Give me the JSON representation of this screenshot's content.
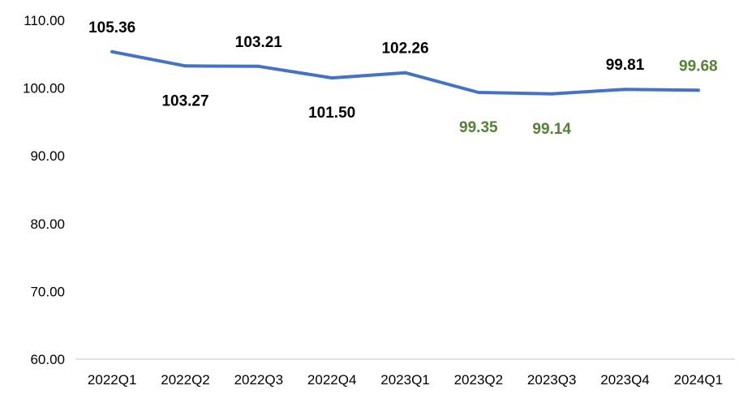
{
  "chart_data": {
    "type": "line",
    "title": "",
    "xlabel": "",
    "ylabel": "",
    "categories": [
      "2022Q1",
      "2022Q2",
      "2022Q3",
      "2022Q4",
      "2023Q1",
      "2023Q2",
      "2023Q3",
      "2023Q4",
      "2024Q1"
    ],
    "series": [
      {
        "values": [
          105.36,
          103.27,
          103.21,
          101.5,
          102.26,
          99.35,
          99.14,
          99.81,
          99.68
        ],
        "value_labels": [
          "105.36",
          "103.27",
          "103.21",
          "101.50",
          "102.26",
          "99.35",
          "99.14",
          "99.81",
          "99.68"
        ],
        "label_positions": [
          "above",
          "below",
          "above",
          "below",
          "above",
          "below",
          "below",
          "above",
          "above"
        ],
        "label_colors": [
          "#000000",
          "#000000",
          "#000000",
          "#000000",
          "#000000",
          "#548235",
          "#548235",
          "#000000",
          "#548235"
        ],
        "color": "#4472C4"
      }
    ],
    "ylim": [
      60,
      110
    ],
    "yticks": [
      60,
      70,
      80,
      90,
      100,
      110
    ],
    "ytick_labels": [
      "60.00",
      "70.00",
      "80.00",
      "90.00",
      "100.00",
      "110.00"
    ],
    "grid": false,
    "legend": "none"
  }
}
